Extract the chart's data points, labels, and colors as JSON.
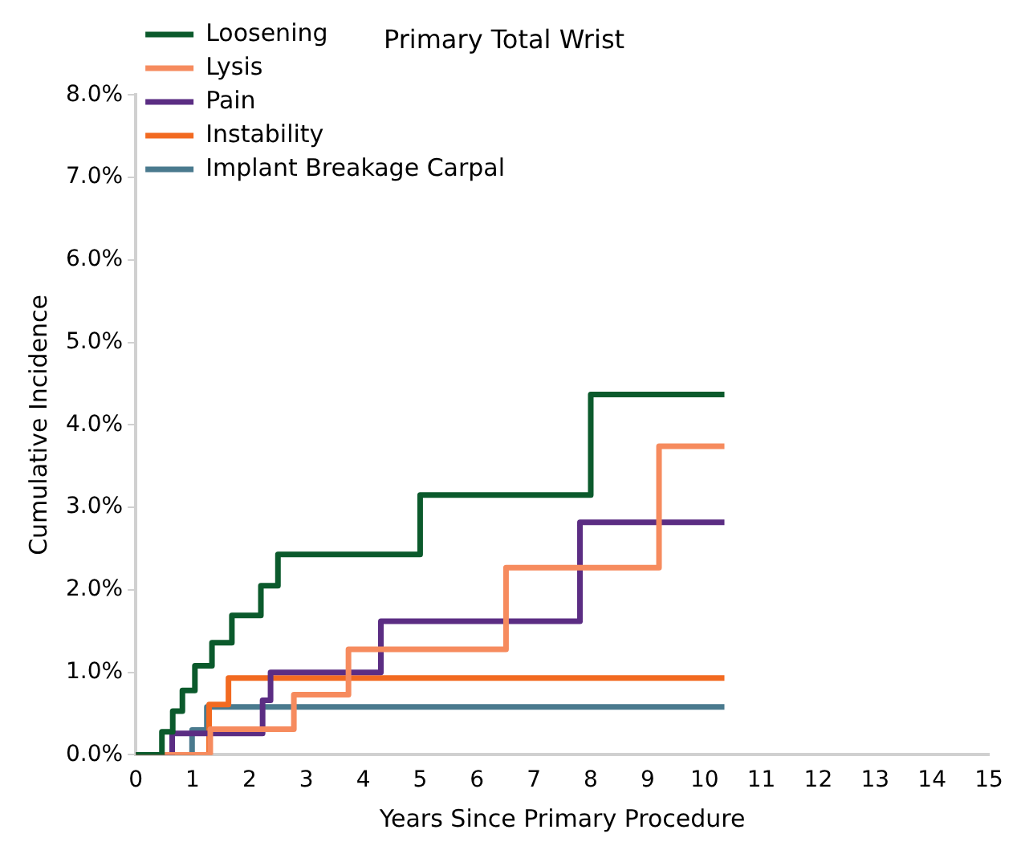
{
  "chart_data": {
    "type": "step",
    "title": "Primary Total Wrist",
    "xlabel": "Years Since Primary Procedure",
    "ylabel": "Cumulative Incidence",
    "series": [
      {
        "name": "Loosening",
        "color": "#0b5a2c",
        "x": [
          0,
          0.46,
          0.65,
          0.82,
          1.04,
          1.34,
          1.69,
          2.2,
          2.5,
          5.0,
          8.0,
          10.35
        ],
        "values": [
          0,
          0.28,
          0.53,
          0.78,
          1.08,
          1.36,
          1.69,
          2.05,
          2.43,
          3.15,
          4.37,
          4.37
        ]
      },
      {
        "name": "Lysis",
        "color": "#f68b5e",
        "x": [
          0,
          1.31,
          2.78,
          3.74,
          6.51,
          9.2,
          10.35
        ],
        "values": [
          0,
          0.31,
          0.73,
          1.28,
          2.27,
          3.74,
          3.74
        ]
      },
      {
        "name": "Pain",
        "color": "#5b2d83",
        "x": [
          0,
          0.64,
          2.23,
          2.37,
          4.31,
          7.81,
          10.35
        ],
        "values": [
          0,
          0.26,
          0.66,
          1.0,
          1.62,
          2.82,
          2.82
        ]
      },
      {
        "name": "Instability",
        "color": "#f26a21",
        "x": [
          0,
          1.29,
          1.63,
          10.35
        ],
        "values": [
          0,
          0.61,
          0.93,
          0.93
        ]
      },
      {
        "name": "Implant Breakage Carpal",
        "color": "#4a7a8e",
        "x": [
          0,
          0.99,
          1.25,
          10.35
        ],
        "values": [
          0,
          0.3,
          0.58,
          0.58
        ]
      }
    ],
    "xlim": [
      0,
      15
    ],
    "xticks": [
      0,
      1,
      2,
      3,
      4,
      5,
      6,
      7,
      8,
      9,
      10,
      11,
      12,
      13,
      14,
      15
    ],
    "ylim": [
      0,
      8
    ],
    "yticks": [
      {
        "value": 0,
        "label": "0.0%"
      },
      {
        "value": 1,
        "label": "1.0%"
      },
      {
        "value": 2,
        "label": "2.0%"
      },
      {
        "value": 3,
        "label": "3.0%"
      },
      {
        "value": 4,
        "label": "4.0%"
      },
      {
        "value": 5,
        "label": "5.0%"
      },
      {
        "value": 6,
        "label": "6.0%"
      },
      {
        "value": 7,
        "label": "7.0%"
      },
      {
        "value": 8,
        "label": "8.0%"
      }
    ],
    "grid": false,
    "legend": "top left"
  }
}
